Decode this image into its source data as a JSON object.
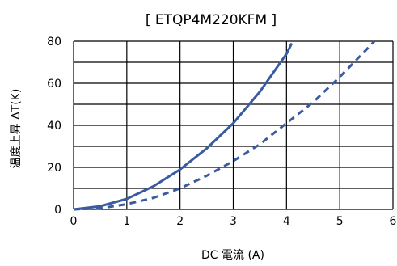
{
  "chart_data": {
    "type": "line",
    "title": "[ ETQP4M220KFM ]",
    "xlabel": "DC 電流 (A)",
    "ylabel": "温度上昇 ΔT(K)",
    "xlim": [
      0,
      6
    ],
    "ylim": [
      0,
      80
    ],
    "x_ticks": [
      "0",
      "1",
      "2",
      "3",
      "4",
      "5",
      "6"
    ],
    "y_ticks": [
      "0",
      "20",
      "40",
      "60",
      "80"
    ],
    "grid": true,
    "line_color": "#3a5ba0",
    "series": [
      {
        "style": "solid",
        "x": [
          0,
          0.5,
          1,
          1.5,
          2,
          2.5,
          3,
          3.5,
          4,
          4.1
        ],
        "y": [
          0,
          1.5,
          5,
          11,
          19,
          29,
          41,
          56,
          74,
          79
        ]
      },
      {
        "style": "dashed",
        "x": [
          0,
          0.5,
          1,
          1.5,
          2,
          2.5,
          3,
          3.5,
          4,
          4.5,
          5,
          5.5,
          5.65
        ],
        "y": [
          0,
          0.5,
          2.5,
          5.5,
          10,
          16,
          23,
          31,
          41,
          51,
          63,
          76,
          80
        ]
      }
    ]
  }
}
